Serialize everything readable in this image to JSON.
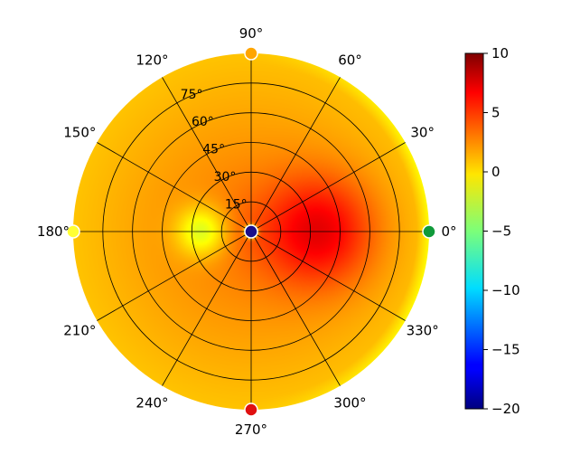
{
  "chart_data": {
    "type": "heatmap",
    "projection": "polar",
    "title": "",
    "angle_ticks": [
      "0°",
      "30°",
      "60°",
      "90°",
      "120°",
      "150°",
      "180°",
      "210°",
      "240°",
      "270°",
      "300°",
      "330°"
    ],
    "radial_ticks": [
      "15°",
      "30°",
      "45°",
      "60°",
      "75°"
    ],
    "radial_values": [
      15,
      30,
      45,
      60,
      75
    ],
    "rlim": [
      0,
      90
    ],
    "grid": true,
    "colorbar": {
      "cmap": "jet",
      "vmin": -20,
      "vmax": 10,
      "ticks": [
        10,
        5,
        0,
        -5,
        -10,
        -15,
        -20
      ],
      "tick_labels": [
        "10",
        "5",
        "0",
        "−5",
        "−10",
        "−15",
        "−20"
      ],
      "position": "right"
    },
    "field": {
      "description_values": "approximate data values",
      "center_value": -20,
      "hot_spot": {
        "azimuth_deg": 0,
        "elevation_deg": 35,
        "value": 7
      },
      "cool_spot": {
        "azimuth_deg": 180,
        "elevation_deg": 25,
        "value": -2
      },
      "edge_value": 0.5
    },
    "markers": [
      {
        "azimuth_deg": 0,
        "radius_deg": 0,
        "value": -20,
        "color": "#1a0f8a"
      },
      {
        "azimuth_deg": 0,
        "radius_deg": 90,
        "value": -4,
        "color": "#109a3a"
      },
      {
        "azimuth_deg": 90,
        "radius_deg": 90,
        "value": 1,
        "color": "#ffa500"
      },
      {
        "azimuth_deg": 180,
        "radius_deg": 90,
        "value": 0.5,
        "color": "#ffff33"
      },
      {
        "azimuth_deg": 270,
        "radius_deg": 90,
        "value": 8,
        "color": "#e01010"
      }
    ]
  }
}
